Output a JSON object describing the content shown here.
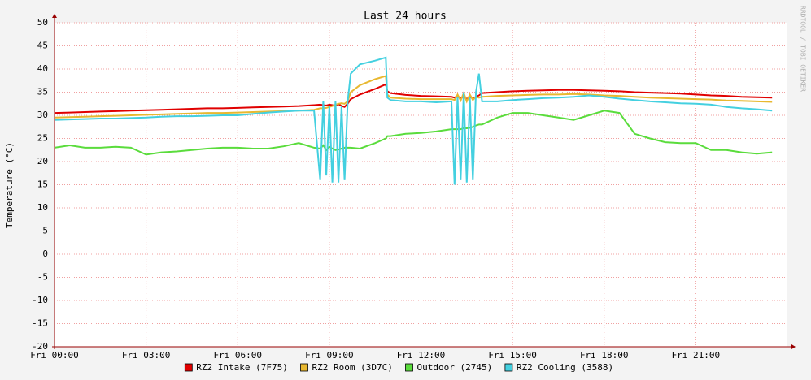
{
  "chart_data": {
    "type": "line",
    "title": "Last 24 hours",
    "y_label": "Temperature (°C)",
    "watermark": "RRDTOOL / TOBI OETIKER",
    "x": [
      0,
      0.5,
      1,
      1.5,
      2,
      2.5,
      3,
      3.5,
      4,
      4.5,
      5,
      5.5,
      6,
      6.5,
      7,
      7.5,
      8,
      8.5,
      8.7,
      8.8,
      8.9,
      9.0,
      9.1,
      9.2,
      9.3,
      9.4,
      9.5,
      9.6,
      9.7,
      10,
      10.5,
      10.85,
      10.9,
      11,
      11.5,
      12,
      12.5,
      13,
      13.1,
      13.2,
      13.3,
      13.4,
      13.5,
      13.6,
      13.7,
      13.8,
      13.9,
      14,
      14.5,
      15,
      15.5,
      16,
      16.5,
      17,
      17.5,
      18,
      18.5,
      19,
      19.5,
      20,
      20.5,
      21,
      21.5,
      22,
      22.5,
      23,
      23.5
    ],
    "xlim": [
      0,
      24
    ],
    "xticks": [
      {
        "value": 0,
        "label": "Fri 00:00"
      },
      {
        "value": 3,
        "label": "Fri 03:00"
      },
      {
        "value": 6,
        "label": "Fri 06:00"
      },
      {
        "value": 9,
        "label": "Fri 09:00"
      },
      {
        "value": 12,
        "label": "Fri 12:00"
      },
      {
        "value": 15,
        "label": "Fri 15:00"
      },
      {
        "value": 18,
        "label": "Fri 18:00"
      },
      {
        "value": 21,
        "label": "Fri 21:00"
      }
    ],
    "ylim": [
      -20,
      50
    ],
    "yticks": [
      -20,
      -15,
      -10,
      -5,
      0,
      5,
      10,
      15,
      20,
      25,
      30,
      35,
      40,
      45,
      50
    ],
    "grid": true,
    "legend": "bottom",
    "series": [
      {
        "name": "RZ2 Intake (7F75)",
        "color": "#e00000",
        "values": [
          30.5,
          30.6,
          30.7,
          30.8,
          30.9,
          31,
          31.1,
          31.2,
          31.3,
          31.4,
          31.5,
          31.5,
          31.6,
          31.7,
          31.8,
          31.9,
          32,
          32.2,
          32.3,
          32.2,
          32.1,
          32.3,
          32.2,
          32,
          32.4,
          32,
          31.8,
          32.5,
          33.5,
          34.5,
          35.7,
          36.7,
          35.2,
          34.8,
          34.4,
          34.2,
          34.1,
          34,
          33.8,
          34.2,
          33.6,
          34.1,
          33.5,
          34,
          33.6,
          34,
          34.3,
          34.8,
          35,
          35.2,
          35.3,
          35.4,
          35.5,
          35.5,
          35.4,
          35.3,
          35.2,
          35,
          34.9,
          34.8,
          34.7,
          34.5,
          34.3,
          34.2,
          34,
          33.9,
          33.8
        ]
      },
      {
        "name": "RZ2 Room (3D7C)",
        "color": "#e8b830",
        "values": [
          29.5,
          29.6,
          29.7,
          29.8,
          29.9,
          30,
          30.1,
          30.2,
          30.3,
          30.4,
          30.5,
          30.5,
          30.6,
          30.7,
          30.8,
          30.9,
          31,
          31.2,
          31.5,
          31.5,
          31.6,
          31.8,
          32,
          32.3,
          32.5,
          32.6,
          32.5,
          33,
          35,
          36.5,
          37.8,
          38.5,
          34.5,
          33.8,
          33.6,
          33.5,
          33.5,
          33.5,
          33.3,
          34.5,
          33.2,
          34.8,
          33,
          34.5,
          33.3,
          34,
          33.8,
          34,
          34.2,
          34.3,
          34.4,
          34.5,
          34.5,
          34.6,
          34.5,
          34.3,
          34.2,
          34,
          33.8,
          33.7,
          33.6,
          33.5,
          33.4,
          33.2,
          33.1,
          33,
          32.9
        ]
      },
      {
        "name": "Outdoor (2745)",
        "color": "#5adc3c",
        "values": [
          23,
          23.5,
          23,
          23,
          23.2,
          23,
          21.5,
          22,
          22.2,
          22.5,
          22.8,
          23,
          23,
          22.8,
          22.8,
          23.3,
          24,
          23,
          22.8,
          23.5,
          22.5,
          23.2,
          22.8,
          22.5,
          22.6,
          22.8,
          23,
          23,
          23,
          22.8,
          24,
          25,
          25.5,
          25.5,
          26,
          26.2,
          26.5,
          27,
          27,
          27,
          27,
          27.2,
          27.2,
          27.3,
          27.5,
          27.8,
          28,
          28,
          29.5,
          30.5,
          30.5,
          30,
          29.5,
          29,
          30,
          31,
          30.5,
          26,
          25,
          24.2,
          24,
          24,
          22.5,
          22.5,
          22,
          21.7,
          22
        ]
      },
      {
        "name": "RZ2 Cooling (3588)",
        "color": "#44d0e0",
        "values": [
          29,
          29.1,
          29.2,
          29.3,
          29.3,
          29.4,
          29.5,
          29.7,
          29.8,
          29.8,
          29.9,
          30,
          30,
          30.3,
          30.6,
          30.8,
          31,
          31,
          16,
          33,
          17,
          32,
          15.5,
          33,
          15.5,
          32,
          16,
          33,
          39,
          41,
          41.8,
          42.5,
          33.8,
          33.3,
          33,
          33,
          32.8,
          33,
          15,
          34,
          16,
          35,
          15.5,
          34,
          16,
          35,
          39,
          33,
          33,
          33.3,
          33.5,
          33.7,
          33.8,
          34,
          34.3,
          34,
          33.6,
          33.3,
          33,
          32.8,
          32.6,
          32.5,
          32.3,
          31.8,
          31.5,
          31.3,
          31
        ]
      }
    ]
  }
}
